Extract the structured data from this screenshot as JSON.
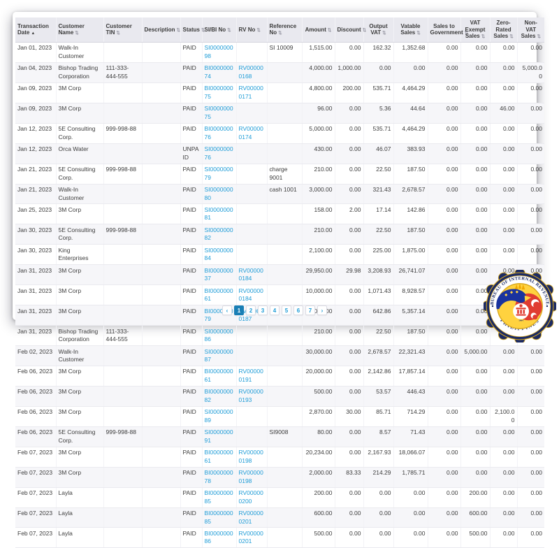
{
  "table": {
    "sort_icons": {
      "ascending": "▲",
      "unsorted": "⇅"
    },
    "link_color": "#1e9cd7",
    "header_bg": "#e9e9ef",
    "columns": [
      {
        "key": "date",
        "label": "Transaction Date",
        "align": "left",
        "sort": "asc",
        "width": 58,
        "link": false
      },
      {
        "key": "name",
        "label": "Customer Name",
        "align": "left",
        "sort": "both",
        "width": 68,
        "link": false
      },
      {
        "key": "tin",
        "label": "Customer TIN",
        "align": "left",
        "sort": "both",
        "width": 55,
        "link": false
      },
      {
        "key": "desc",
        "label": "Description",
        "align": "left",
        "sort": "both",
        "width": 55,
        "link": false
      },
      {
        "key": "status",
        "label": "Status",
        "align": "left",
        "sort": "both",
        "width": 31,
        "link": false
      },
      {
        "key": "sibi",
        "label": "SI/BI No",
        "align": "left",
        "sort": "both",
        "width": 49,
        "link": true
      },
      {
        "key": "rv",
        "label": "RV No",
        "align": "left",
        "sort": "both",
        "width": 44,
        "link": true
      },
      {
        "key": "ref",
        "label": "Reference No",
        "align": "left",
        "sort": "both",
        "width": 50,
        "link": false
      },
      {
        "key": "amount",
        "label": "Amount",
        "align": "right",
        "sort": "both",
        "width": 47,
        "link": false
      },
      {
        "key": "discount",
        "label": "Discount",
        "align": "right",
        "sort": "both",
        "width": 41,
        "link": false
      },
      {
        "key": "output_vat",
        "label": "Output VAT",
        "align": "right",
        "sort": "both",
        "width": 43,
        "link": false
      },
      {
        "key": "vatable",
        "label": "Vatable Sales",
        "align": "right",
        "sort": "both",
        "width": 49,
        "link": false
      },
      {
        "key": "sales_gov",
        "label": "Sales to Government",
        "align": "right",
        "sort": "both",
        "width": 47,
        "link": false
      },
      {
        "key": "vat_exempt",
        "label": "VAT Exempt Sales",
        "align": "right",
        "sort": "both",
        "width": 42,
        "link": false
      },
      {
        "key": "zero_rated",
        "label": "Zero-Rated Sales",
        "align": "right",
        "sort": "both",
        "width": 39,
        "link": false
      },
      {
        "key": "non_vat",
        "label": "Non-VAT Sales",
        "align": "right",
        "sort": "both",
        "width": 39,
        "link": false
      }
    ],
    "rows": [
      [
        "Jan 01, 2023",
        "Walk-In Customer",
        "",
        "",
        "PAID",
        "SI000000098",
        "",
        "SI 10009",
        "1,515.00",
        "0.00",
        "162.32",
        "1,352.68",
        "0.00",
        "0.00",
        "0.00",
        "0.00"
      ],
      [
        "Jan 04, 2023",
        "Bishop Trading Corporation",
        "111-333-444-555",
        "",
        "PAID",
        "BI000000074",
        "RV000000168",
        "",
        "4,000.00",
        "1,000.00",
        "0.00",
        "0.00",
        "0.00",
        "0.00",
        "0.00",
        "5,000.00"
      ],
      [
        "Jan 09, 2023",
        "3M Corp",
        "",
        "",
        "PAID",
        "BI000000075",
        "RV000000171",
        "",
        "4,800.00",
        "200.00",
        "535.71",
        "4,464.29",
        "0.00",
        "0.00",
        "0.00",
        "0.00"
      ],
      [
        "Jan 09, 2023",
        "3M Corp",
        "",
        "",
        "PAID",
        "SI000000075",
        "",
        "",
        "96.00",
        "0.00",
        "5.36",
        "44.64",
        "0.00",
        "0.00",
        "46.00",
        "0.00"
      ],
      [
        "Jan 12, 2023",
        "5E Consulting Corp.",
        "999-998-88",
        "",
        "PAID",
        "BI000000076",
        "RV000000174",
        "",
        "5,000.00",
        "0.00",
        "535.71",
        "4,464.29",
        "0.00",
        "0.00",
        "0.00",
        "0.00"
      ],
      [
        "Jan 12, 2023",
        "Orca Water",
        "",
        "",
        "UNPAID",
        "SI000000076",
        "",
        "",
        "430.00",
        "0.00",
        "46.07",
        "383.93",
        "0.00",
        "0.00",
        "0.00",
        "0.00"
      ],
      [
        "Jan 21, 2023",
        "5E Consulting Corp.",
        "999-998-88",
        "",
        "PAID",
        "SI000000079",
        "",
        "charge 9001",
        "210.00",
        "0.00",
        "22.50",
        "187.50",
        "0.00",
        "0.00",
        "0.00",
        "0.00"
      ],
      [
        "Jan 21, 2023",
        "Walk-In Customer",
        "",
        "",
        "PAID",
        "SI000000080",
        "",
        "cash 1001",
        "3,000.00",
        "0.00",
        "321.43",
        "2,678.57",
        "0.00",
        "0.00",
        "0.00",
        "0.00"
      ],
      [
        "Jan 25, 2023",
        "3M Corp",
        "",
        "",
        "PAID",
        "SI000000081",
        "",
        "",
        "158.00",
        "2.00",
        "17.14",
        "142.86",
        "0.00",
        "0.00",
        "0.00",
        "0.00"
      ],
      [
        "Jan 30, 2023",
        "5E Consulting Corp.",
        "999-998-88",
        "",
        "PAID",
        "SI000000082",
        "",
        "",
        "210.00",
        "0.00",
        "22.50",
        "187.50",
        "0.00",
        "0.00",
        "0.00",
        "0.00"
      ],
      [
        "Jan 30, 2023",
        "King Enterprises",
        "",
        "",
        "PAID",
        "SI000000084",
        "",
        "",
        "2,100.00",
        "0.00",
        "225.00",
        "1,875.00",
        "0.00",
        "0.00",
        "0.00",
        "0.00"
      ],
      [
        "Jan 31, 2023",
        "3M Corp",
        "",
        "",
        "PAID",
        "BI000000037",
        "RV000000184",
        "",
        "29,950.00",
        "29.98",
        "3,208.93",
        "26,741.07",
        "0.00",
        "0.00",
        "0.00",
        "0.00"
      ],
      [
        "Jan 31, 2023",
        "3M Corp",
        "",
        "",
        "PAID",
        "BI000000061",
        "RV000000184",
        "",
        "10,000.00",
        "0.00",
        "1,071.43",
        "8,928.57",
        "0.00",
        "0.00",
        "0.00",
        "0.00"
      ],
      [
        "Jan 31, 2023",
        "3M Corp",
        "",
        "",
        "PAID",
        "BI000000079",
        "RV000000187",
        "",
        "6,000.00",
        "0.00",
        "642.86",
        "5,357.14",
        "0.00",
        "0.00",
        "0.00",
        "0.00"
      ],
      [
        "Jan 31, 2023",
        "Bishop Trading Corporation",
        "111-333-444-555",
        "",
        "PAID",
        "SI000000086",
        "",
        "",
        "210.00",
        "0.00",
        "22.50",
        "187.50",
        "0.00",
        "0.00",
        "0.00",
        "0.00"
      ],
      [
        "Feb 02, 2023",
        "Walk-In Customer",
        "",
        "",
        "PAID",
        "SI000000087",
        "",
        "",
        "30,000.00",
        "0.00",
        "2,678.57",
        "22,321.43",
        "0.00",
        "5,000.00",
        "0.00",
        "0.00"
      ],
      [
        "Feb 06, 2023",
        "3M Corp",
        "",
        "",
        "PAID",
        "BI000000061",
        "RV000000191",
        "",
        "20,000.00",
        "0.00",
        "2,142.86",
        "17,857.14",
        "0.00",
        "0.00",
        "0.00",
        "0.00"
      ],
      [
        "Feb 06, 2023",
        "3M Corp",
        "",
        "",
        "PAID",
        "BI000000082",
        "RV000000193",
        "",
        "500.00",
        "0.00",
        "53.57",
        "446.43",
        "0.00",
        "0.00",
        "0.00",
        "0.00"
      ],
      [
        "Feb 06, 2023",
        "3M Corp",
        "",
        "",
        "PAID",
        "SI000000089",
        "",
        "",
        "2,870.00",
        "30.00",
        "85.71",
        "714.29",
        "0.00",
        "0.00",
        "2,100.00",
        "0.00"
      ],
      [
        "Feb 06, 2023",
        "5E Consulting Corp.",
        "999-998-88",
        "",
        "PAID",
        "SI000000091",
        "",
        "SI9008",
        "80.00",
        "0.00",
        "8.57",
        "71.43",
        "0.00",
        "0.00",
        "0.00",
        "0.00"
      ],
      [
        "Feb 07, 2023",
        "3M Corp",
        "",
        "",
        "PAID",
        "BI000000061",
        "RV000000198",
        "",
        "20,234.00",
        "0.00",
        "2,167.93",
        "18,066.07",
        "0.00",
        "0.00",
        "0.00",
        "0.00"
      ],
      [
        "Feb 07, 2023",
        "3M Corp",
        "",
        "",
        "PAID",
        "BI000000078",
        "RV000000198",
        "",
        "2,000.00",
        "83.33",
        "214.29",
        "1,785.71",
        "0.00",
        "0.00",
        "0.00",
        "0.00"
      ],
      [
        "Feb 07, 2023",
        "Layla",
        "",
        "",
        "PAID",
        "BI000000085",
        "RV000000200",
        "",
        "200.00",
        "0.00",
        "0.00",
        "0.00",
        "0.00",
        "200.00",
        "0.00",
        "0.00"
      ],
      [
        "Feb 07, 2023",
        "Layla",
        "",
        "",
        "PAID",
        "BI000000085",
        "RV000000201",
        "",
        "600.00",
        "0.00",
        "0.00",
        "0.00",
        "0.00",
        "600.00",
        "0.00",
        "0.00"
      ],
      [
        "Feb 07, 2023",
        "Layla",
        "",
        "",
        "PAID",
        "BI000000086",
        "RV000000201",
        "",
        "500.00",
        "0.00",
        "0.00",
        "0.00",
        "0.00",
        "500.00",
        "0.00",
        "0.00"
      ]
    ]
  },
  "pagination": {
    "prev_label": "‹",
    "next_label": "›",
    "pages": [
      "1",
      "2",
      "3",
      "4",
      "5",
      "6",
      "7"
    ],
    "active_page": "1",
    "active_color": "#1a7fb5"
  },
  "seal": {
    "top_text": "BUREAU OF INTERNAL REVENUE",
    "bottom_text": "PHILIPPINES",
    "year": "1904",
    "navy": "#1c2b63",
    "gold": "#d9a91f",
    "yellow": "#ffd23f",
    "red": "#e03c31",
    "blue": "#1a339e"
  }
}
